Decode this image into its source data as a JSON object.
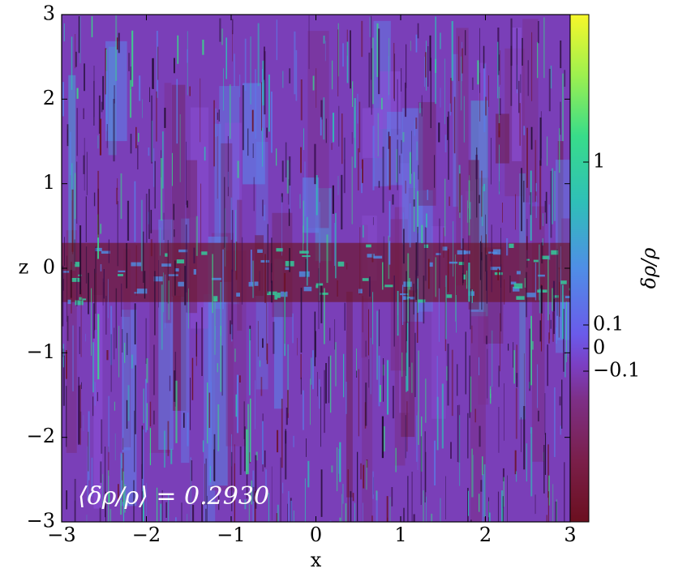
{
  "chart_data": {
    "type": "heatmap",
    "title": "",
    "xlabel": "x",
    "ylabel": "z",
    "xlim": [
      -3,
      3
    ],
    "ylim": [
      -3,
      3
    ],
    "xticks": [
      "−3",
      "−2",
      "−1",
      "0",
      "1",
      "2",
      "3"
    ],
    "yticks": [
      "−3",
      "−2",
      "−1",
      "0",
      "1",
      "2",
      "3"
    ],
    "colorbar": {
      "label": "δρ/ρ",
      "scale": "symlog",
      "ticks": [
        "1",
        "0.1",
        "0",
        "−0.1"
      ],
      "colors": [
        "#6b0f1f",
        "#7a1f4a",
        "#7d2f86",
        "#7b3fc4",
        "#6a5bea",
        "#4f8ee6",
        "#2fbfb8",
        "#38dc8a",
        "#9df04f",
        "#f7f72a"
      ]
    },
    "annotation": "⟨δρ/ρ⟩ = 0.2930",
    "mean": 0.293,
    "features": {
      "midplane_band_z": [
        -0.3,
        0.2
      ],
      "midplane_color": "#6e1830",
      "background_color": "#7a3fb8"
    }
  }
}
